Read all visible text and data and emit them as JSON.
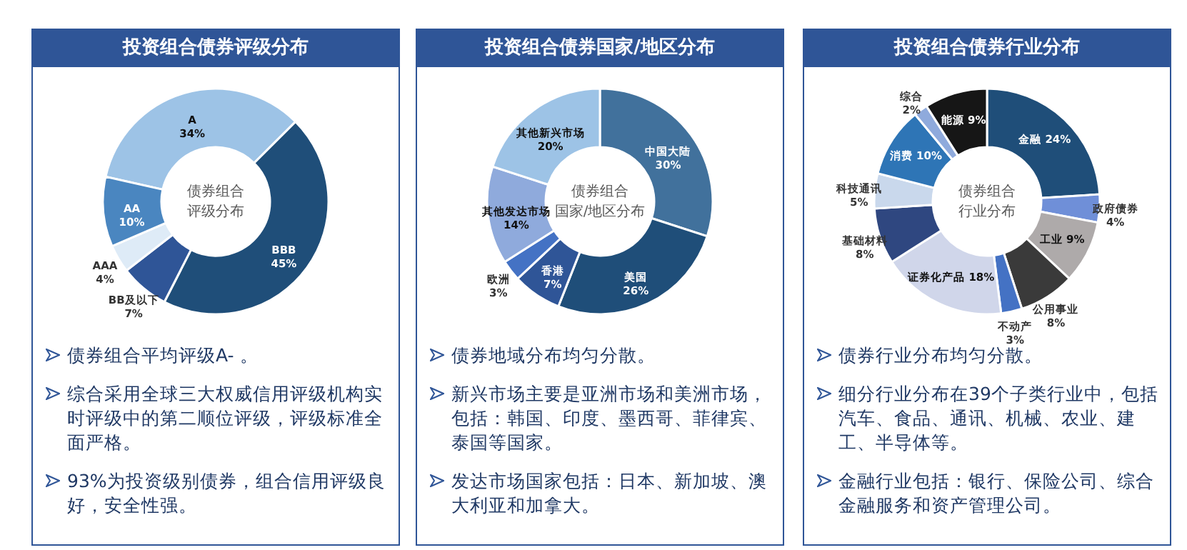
{
  "chart_data": [
    {
      "type": "donut",
      "title": "投资组合债券评级分布",
      "categories": [
        "A",
        "BBB",
        "BB及以下",
        "AAA",
        "AA"
      ],
      "values": [
        34,
        45,
        7,
        4,
        10
      ],
      "value_labels": [
        "34%",
        "45%",
        "7%",
        "4%",
        "10%"
      ],
      "colors": [
        "#9dc3e6",
        "#1f4e79",
        "#2f5597",
        "#deebf7",
        "#4a86c0"
      ],
      "annotations": [
        "债券组合评级分布",
        "债券组合平均评级A- 。",
        "综合采用全球三大权威信用评级机构实时评级中的第二顺位评级，评级标准全面严格。",
        "93%为投资级别债券，组合信用评级良好，安全性强。"
      ]
    },
    {
      "type": "donut",
      "title": "投资组合债券国家/地区分布",
      "categories": [
        "中国大陆",
        "美国",
        "香港",
        "欧洲",
        "其他发达市场",
        "其他新兴市场"
      ],
      "values": [
        30,
        26,
        7,
        3,
        14,
        20
      ],
      "value_labels": [
        "30%",
        "26%",
        "7%",
        "3%",
        "14%",
        "20%"
      ],
      "colors": [
        "#41719c",
        "#1f4e79",
        "#2f5597",
        "#4472c4",
        "#8faadc",
        "#9dc3e6"
      ],
      "annotations": [
        "债券组合国家/地区分布",
        "债券地域分布均匀分散。",
        "新兴市场主要是亚洲市场和美洲市场，包括：韩国、印度、墨西哥、菲律宾、泰国等国家。",
        "发达市场国家包括：日本、新加坡、澳大利亚和加拿大。"
      ]
    },
    {
      "type": "donut",
      "title": "投资组合债券行业分布",
      "categories": [
        "金融",
        "政府债券",
        "工业",
        "公用事业",
        "不动产",
        "证券化产品",
        "基础材料",
        "科技通讯",
        "消费",
        "综合",
        "能源"
      ],
      "values": [
        24,
        4,
        9,
        8,
        3,
        18,
        8,
        5,
        10,
        2,
        9
      ],
      "value_labels": [
        "24%",
        "4%",
        "9%",
        "8%",
        "3%",
        "18%",
        "8%",
        "5%",
        "10%",
        "2%",
        "9%"
      ],
      "colors": [
        "#1f4e79",
        "#6f8fd8",
        "#aeaaaa",
        "#3a3a3a",
        "#4472c4",
        "#d0d6ea",
        "#2f4780",
        "#c9d8ec",
        "#2e75b6",
        "#8faadc",
        "#161616"
      ],
      "annotations": [
        "债券组合行业分布",
        "债券行业分布均匀分散。",
        "细分行业分布在39个子类行业中，包括汽车、食品、通讯、机械、农业、建工、半导体等。",
        "金融行业包括：银行、保险公司、综合金融服务和资产管理公司。"
      ]
    }
  ]
}
